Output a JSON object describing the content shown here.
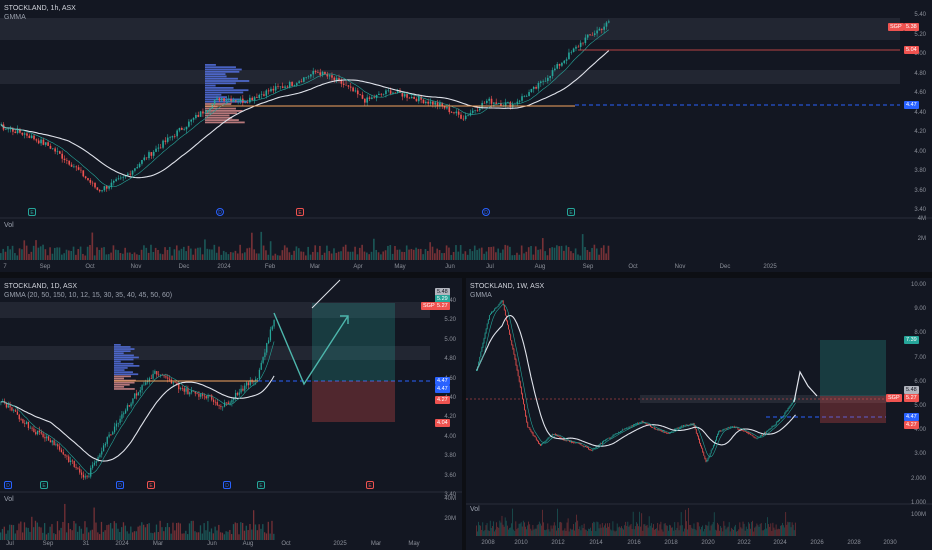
{
  "colors": {
    "bg": "#131722",
    "up": "#26a69a",
    "down": "#ef5350",
    "accent": "#2962ff",
    "ma": "#e0e3eb",
    "band": "#2a2e39"
  },
  "top": {
    "title": "STOCKLAND, 1h, ASX",
    "indicator": "GMMA",
    "vol_label": "Vol",
    "y_ticks": [
      "5.40",
      "5.20",
      "5.00",
      "4.80",
      "4.60",
      "4.40",
      "4.20",
      "4.00",
      "3.80",
      "3.60",
      "3.40"
    ],
    "vol_ticks": [
      "4M",
      "2M"
    ],
    "x_ticks": [
      "7",
      "Sep",
      "Oct",
      "Nov",
      "Dec",
      "2024",
      "Feb",
      "Mar",
      "Apr",
      "May",
      "Jun",
      "Jul",
      "Aug",
      "Sep",
      "Oct",
      "Nov",
      "Dec",
      "2025"
    ],
    "tag_sgp": "SGP",
    "tag_price": "5.38",
    "tag_level": "5.04",
    "tag_support": "4.47",
    "events": [
      "E",
      "D",
      "E",
      "D",
      "E"
    ]
  },
  "left": {
    "title": "STOCKLAND, 1D, ASX",
    "indicator": "GMMA (20, 50, 150, 10, 12, 15, 30, 35, 40, 45, 50, 60)",
    "vol_label": "Vol",
    "y_ticks": [
      "5.40",
      "5.20",
      "5.00",
      "4.80",
      "4.60",
      "4.40",
      "4.20",
      "4.00",
      "3.80",
      "3.60",
      "3.40"
    ],
    "vol_ticks": [
      "40M",
      "20M"
    ],
    "x_ticks": [
      "Jul",
      "Sep",
      "31",
      "2024",
      "Mar",
      "Jun",
      "Aug",
      "Oct",
      "2025",
      "Mar",
      "May"
    ],
    "tags": [
      "5.48",
      "5.29",
      "SGP",
      "5.27",
      "4.47",
      "4.47",
      "4.27",
      "4.04"
    ],
    "events": [
      "D",
      "E",
      "D",
      "E",
      "D",
      "E",
      "E"
    ]
  },
  "right": {
    "title": "STOCKLAND, 1W, ASX",
    "indicator": "GMMA",
    "vol_label": "Vol",
    "y_ticks": [
      "10.00",
      "9.00",
      "8.00",
      "7.00",
      "6.00",
      "5.00",
      "4.00",
      "3.00",
      "2.000",
      "1.000"
    ],
    "vol_ticks": [
      "100M"
    ],
    "x_ticks": [
      "2008",
      "2010",
      "2012",
      "2014",
      "2016",
      "2018",
      "2020",
      "2022",
      "2024",
      "2026",
      "2028",
      "2030"
    ],
    "tags": [
      "7.39",
      "5.48",
      "SGP",
      "5.27",
      "4.47",
      "4.27"
    ]
  }
}
